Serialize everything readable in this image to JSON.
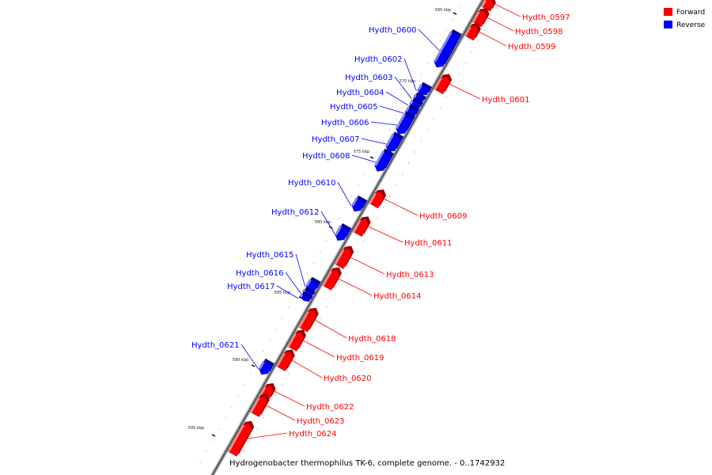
{
  "title": "Hydrogenobacter thermophilus TK-6, complete genome. - 0..1742932",
  "colors": {
    "forward": "#ff0000",
    "reverse": "#0000ff"
  },
  "legend": [
    {
      "label": "Forward",
      "color": "#ff0000"
    },
    {
      "label": "Reverse",
      "color": "#0000ff"
    }
  ],
  "ticks": [
    "565 kbp",
    "570 kbp",
    "575 kbp",
    "580 kbp",
    "585 kbp",
    "590 kbp",
    "595 kbp"
  ],
  "genes": [
    {
      "name": "Hydth_0597",
      "strand": "forward"
    },
    {
      "name": "Hydth_0598",
      "strand": "forward"
    },
    {
      "name": "Hydth_0599",
      "strand": "forward"
    },
    {
      "name": "Hydth_0600",
      "strand": "reverse"
    },
    {
      "name": "Hydth_0601",
      "strand": "forward"
    },
    {
      "name": "Hydth_0602",
      "strand": "reverse"
    },
    {
      "name": "Hydth_0603",
      "strand": "reverse"
    },
    {
      "name": "Hydth_0604",
      "strand": "reverse"
    },
    {
      "name": "Hydth_0605",
      "strand": "reverse"
    },
    {
      "name": "Hydth_0606",
      "strand": "reverse"
    },
    {
      "name": "Hydth_0607",
      "strand": "reverse"
    },
    {
      "name": "Hydth_0608",
      "strand": "reverse"
    },
    {
      "name": "Hydth_0609",
      "strand": "forward"
    },
    {
      "name": "Hydth_0610",
      "strand": "reverse"
    },
    {
      "name": "Hydth_0611",
      "strand": "forward"
    },
    {
      "name": "Hydth_0612",
      "strand": "reverse"
    },
    {
      "name": "Hydth_0613",
      "strand": "forward"
    },
    {
      "name": "Hydth_0614",
      "strand": "forward"
    },
    {
      "name": "Hydth_0615",
      "strand": "reverse"
    },
    {
      "name": "Hydth_0616",
      "strand": "reverse"
    },
    {
      "name": "Hydth_0617",
      "strand": "reverse"
    },
    {
      "name": "Hydth_0618",
      "strand": "forward"
    },
    {
      "name": "Hydth_0619",
      "strand": "forward"
    },
    {
      "name": "Hydth_0620",
      "strand": "forward"
    },
    {
      "name": "Hydth_0621",
      "strand": "reverse"
    },
    {
      "name": "Hydth_0622",
      "strand": "forward"
    },
    {
      "name": "Hydth_0623",
      "strand": "forward"
    },
    {
      "name": "Hydth_0624",
      "strand": "forward"
    }
  ]
}
